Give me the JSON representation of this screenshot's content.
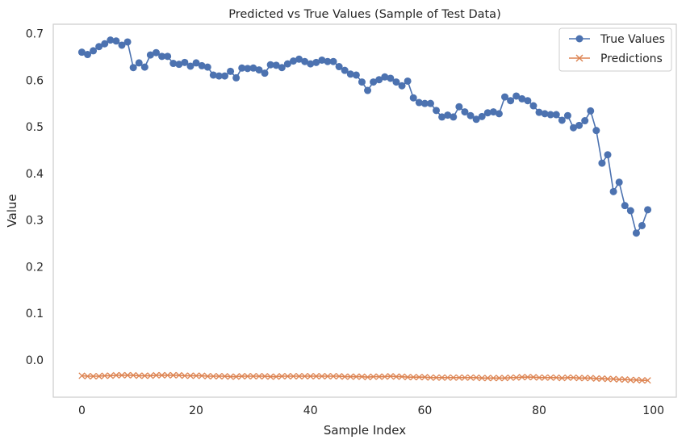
{
  "chart_data": {
    "type": "line",
    "title": "Predicted vs True Values (Sample of Test Data)",
    "xlabel": "Sample Index",
    "ylabel": "Value",
    "xlim": [
      -5,
      104
    ],
    "ylim": [
      -0.08,
      0.72
    ],
    "xticks": [
      0,
      20,
      40,
      60,
      80,
      100
    ],
    "yticks": [
      0.0,
      0.1,
      0.2,
      0.3,
      0.4,
      0.5,
      0.6,
      0.7
    ],
    "ytick_labels": [
      "0.0",
      "0.1",
      "0.2",
      "0.3",
      "0.4",
      "0.5",
      "0.6",
      "0.7"
    ],
    "xtick_labels": [
      "0",
      "20",
      "40",
      "60",
      "80",
      "100"
    ],
    "grid": false,
    "legend_position": "top-right",
    "series": [
      {
        "name": "True Values",
        "color": "#4c72b0",
        "marker": "circle",
        "values": [
          0.66,
          0.655,
          0.663,
          0.672,
          0.678,
          0.686,
          0.684,
          0.675,
          0.682,
          0.627,
          0.637,
          0.628,
          0.654,
          0.659,
          0.651,
          0.651,
          0.636,
          0.634,
          0.638,
          0.63,
          0.637,
          0.631,
          0.628,
          0.611,
          0.609,
          0.609,
          0.619,
          0.605,
          0.626,
          0.625,
          0.626,
          0.622,
          0.615,
          0.633,
          0.632,
          0.627,
          0.635,
          0.641,
          0.645,
          0.64,
          0.635,
          0.638,
          0.643,
          0.64,
          0.64,
          0.629,
          0.621,
          0.613,
          0.611,
          0.596,
          0.578,
          0.596,
          0.601,
          0.607,
          0.604,
          0.596,
          0.588,
          0.598,
          0.562,
          0.552,
          0.55,
          0.55,
          0.535,
          0.521,
          0.525,
          0.521,
          0.543,
          0.532,
          0.524,
          0.516,
          0.522,
          0.53,
          0.532,
          0.528,
          0.564,
          0.556,
          0.566,
          0.56,
          0.556,
          0.545,
          0.531,
          0.528,
          0.526,
          0.526,
          0.514,
          0.524,
          0.498,
          0.503,
          0.513,
          0.534,
          0.492,
          0.422,
          0.44,
          0.361,
          0.381,
          0.331,
          0.32,
          0.272,
          0.288,
          0.322
        ]
      },
      {
        "name": "Predictions",
        "color": "#dd8452",
        "marker": "x",
        "values": [
          -0.034,
          -0.035,
          -0.035,
          -0.035,
          -0.034,
          -0.034,
          -0.033,
          -0.033,
          -0.033,
          -0.033,
          -0.034,
          -0.034,
          -0.034,
          -0.033,
          -0.033,
          -0.033,
          -0.033,
          -0.033,
          -0.034,
          -0.034,
          -0.034,
          -0.034,
          -0.035,
          -0.035,
          -0.035,
          -0.035,
          -0.036,
          -0.036,
          -0.035,
          -0.035,
          -0.035,
          -0.035,
          -0.035,
          -0.036,
          -0.036,
          -0.035,
          -0.035,
          -0.035,
          -0.035,
          -0.035,
          -0.035,
          -0.035,
          -0.035,
          -0.035,
          -0.035,
          -0.035,
          -0.036,
          -0.036,
          -0.036,
          -0.036,
          -0.037,
          -0.036,
          -0.036,
          -0.036,
          -0.035,
          -0.036,
          -0.036,
          -0.037,
          -0.037,
          -0.037,
          -0.037,
          -0.038,
          -0.038,
          -0.038,
          -0.038,
          -0.038,
          -0.038,
          -0.038,
          -0.038,
          -0.038,
          -0.039,
          -0.039,
          -0.039,
          -0.039,
          -0.039,
          -0.038,
          -0.038,
          -0.037,
          -0.037,
          -0.037,
          -0.038,
          -0.038,
          -0.038,
          -0.038,
          -0.039,
          -0.038,
          -0.038,
          -0.039,
          -0.039,
          -0.039,
          -0.04,
          -0.04,
          -0.041,
          -0.041,
          -0.042,
          -0.042,
          -0.043,
          -0.043,
          -0.044,
          -0.044
        ]
      }
    ]
  }
}
